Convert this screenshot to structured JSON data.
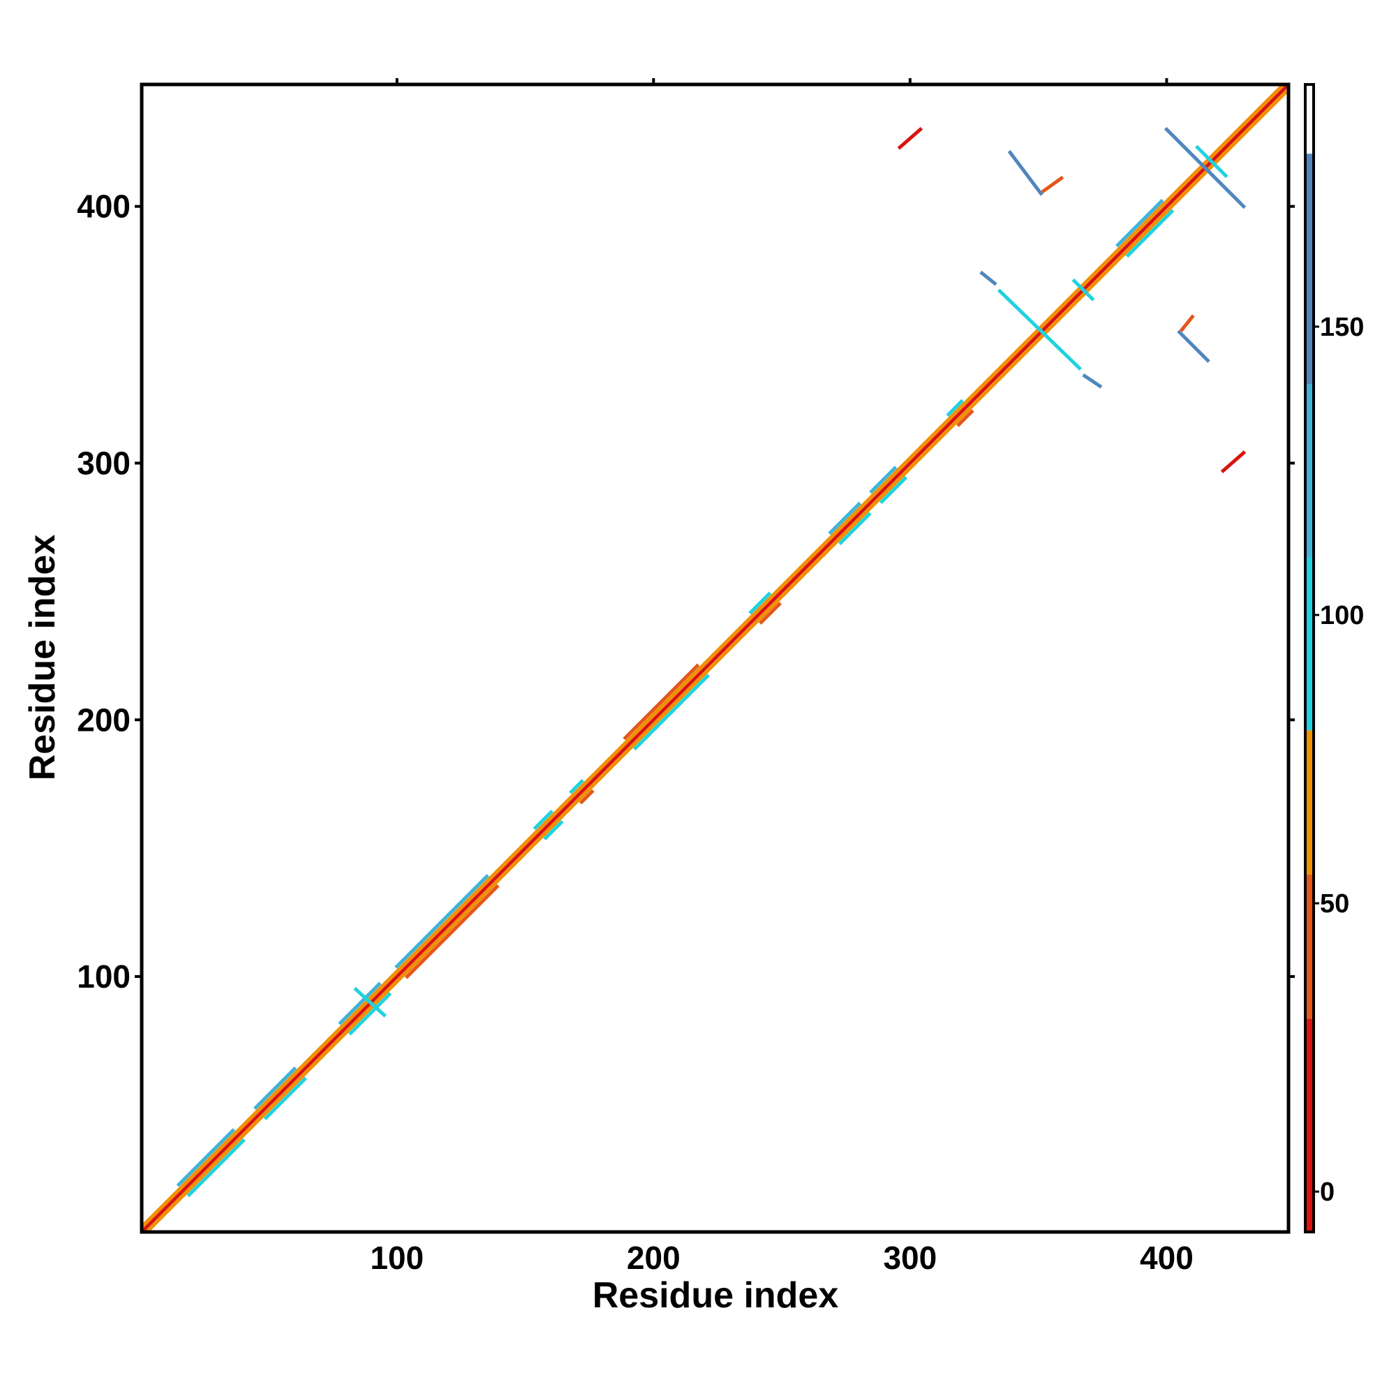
{
  "chart_data": {
    "type": "contact-map",
    "xlabel": "Residue index",
    "ylabel": "Residue index",
    "xlim": [
      0.5,
      447.5
    ],
    "ylim": [
      0.5,
      447.5
    ],
    "xticks": [
      100,
      200,
      300,
      400
    ],
    "yticks": [
      100,
      200,
      300,
      400
    ],
    "colorbar": {
      "clim": [
        -7,
        192
      ],
      "ticks": [
        0,
        50,
        100,
        150
      ],
      "levels": [
        -7,
        30,
        55,
        80,
        110,
        140,
        180,
        192
      ],
      "colors": [
        "#d9140e",
        "#e4561a",
        "#f29000",
        "#1fd2e0",
        "#3fb3d8",
        "#4f86bd",
        "#ffffff"
      ]
    },
    "segments": [
      {
        "x": [
          1,
          447
        ],
        "y": [
          1,
          447
        ],
        "value": 5
      },
      {
        "x": [
          1,
          445
        ],
        "y": [
          3,
          447
        ],
        "value": 60
      },
      {
        "x": [
          3,
          447
        ],
        "y": [
          1,
          445
        ],
        "value": 60
      },
      {
        "x": [
          15,
          36
        ],
        "y": [
          19,
          40
        ],
        "value": 125
      },
      {
        "x": [
          19,
          40
        ],
        "y": [
          15,
          36
        ],
        "value": 95
      },
      {
        "x": [
          45,
          60
        ],
        "y": [
          49,
          64
        ],
        "value": 125
      },
      {
        "x": [
          49,
          64
        ],
        "y": [
          45,
          60
        ],
        "value": 95
      },
      {
        "x": [
          78,
          93
        ],
        "y": [
          82,
          97
        ],
        "value": 125
      },
      {
        "x": [
          82,
          97
        ],
        "y": [
          78,
          93
        ],
        "value": 95
      },
      {
        "x": [
          100,
          135
        ],
        "y": [
          104,
          139
        ],
        "value": 125
      },
      {
        "x": [
          104,
          139
        ],
        "y": [
          100,
          135
        ],
        "value": 40
      },
      {
        "x": [
          154,
          160
        ],
        "y": [
          158,
          164
        ],
        "value": 100
      },
      {
        "x": [
          158,
          164
        ],
        "y": [
          154,
          160
        ],
        "value": 95
      },
      {
        "x": [
          168,
          172
        ],
        "y": [
          172,
          176
        ],
        "value": 100
      },
      {
        "x": [
          172,
          176
        ],
        "y": [
          168,
          172
        ],
        "value": 40
      },
      {
        "x": [
          189,
          217
        ],
        "y": [
          193,
          221
        ],
        "value": 40
      },
      {
        "x": [
          193,
          221
        ],
        "y": [
          189,
          217
        ],
        "value": 95
      },
      {
        "x": [
          238,
          245
        ],
        "y": [
          242,
          249
        ],
        "value": 100
      },
      {
        "x": [
          242,
          249
        ],
        "y": [
          238,
          245
        ],
        "value": 40
      },
      {
        "x": [
          269,
          280
        ],
        "y": [
          273,
          284
        ],
        "value": 125
      },
      {
        "x": [
          273,
          284
        ],
        "y": [
          269,
          280
        ],
        "value": 95
      },
      {
        "x": [
          285,
          294
        ],
        "y": [
          289,
          298
        ],
        "value": 125
      },
      {
        "x": [
          289,
          298
        ],
        "y": [
          285,
          294
        ],
        "value": 95
      },
      {
        "x": [
          315,
          320
        ],
        "y": [
          319,
          324
        ],
        "value": 100
      },
      {
        "x": [
          319,
          324
        ],
        "y": [
          315,
          320
        ],
        "value": 40
      },
      {
        "x": [
          381,
          398
        ],
        "y": [
          385,
          402
        ],
        "value": 125
      },
      {
        "x": [
          385,
          402
        ],
        "y": [
          381,
          398
        ],
        "value": 95
      },
      {
        "x": [
          296,
          304
        ],
        "y": [
          423,
          430
        ],
        "value": 2
      },
      {
        "x": [
          422,
          430
        ],
        "y": [
          297,
          304
        ],
        "value": 2
      },
      {
        "x": [
          335,
          366
        ],
        "y": [
          367,
          337
        ],
        "value": 100
      },
      {
        "x": [
          328,
          333
        ],
        "y": [
          374,
          370
        ],
        "value": 160
      },
      {
        "x": [
          368,
          374
        ],
        "y": [
          334,
          330
        ],
        "value": 160
      },
      {
        "x": [
          400,
          430
        ],
        "y": [
          430,
          400
        ],
        "value": 150
      },
      {
        "x": [
          412,
          423
        ],
        "y": [
          423,
          412
        ],
        "value": 100
      },
      {
        "x": [
          339,
          351
        ],
        "y": [
          421,
          405
        ],
        "value": 140
      },
      {
        "x": [
          352,
          359
        ],
        "y": [
          406,
          411
        ],
        "value": 50
      },
      {
        "x": [
          405,
          416
        ],
        "y": [
          351,
          340
        ],
        "value": 140
      },
      {
        "x": [
          406,
          410
        ],
        "y": [
          352,
          357
        ],
        "value": 50
      },
      {
        "x": [
          364,
          371
        ],
        "y": [
          371,
          364
        ],
        "value": 100
      },
      {
        "x": [
          84,
          95
        ],
        "y": [
          95,
          85
        ],
        "value": 100
      }
    ]
  }
}
